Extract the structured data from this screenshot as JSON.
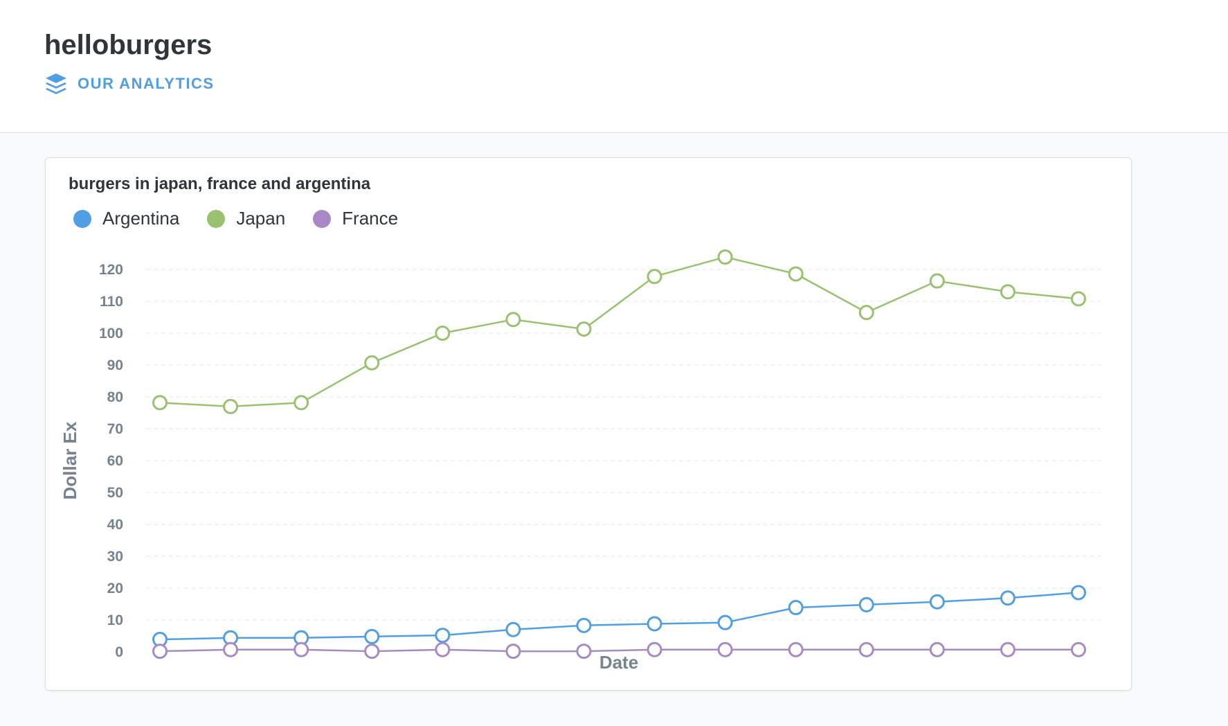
{
  "dashboard": {
    "title": "helloburgers",
    "collection_label": "OUR ANALYTICS",
    "collection_icon": "collection-stack-icon"
  },
  "card": {
    "title": "burgers in japan, france and argentina"
  },
  "colors": {
    "accent": "#509ee3",
    "argentina": "#509ee3",
    "japan": "#98c270",
    "france": "#a989c5"
  },
  "chart_data": {
    "type": "line",
    "title": "burgers in japan, france and argentina",
    "xlabel": "Date",
    "ylabel": "Dollar Ex",
    "ylim": [
      0,
      120
    ],
    "yticks": [
      0,
      10,
      20,
      30,
      40,
      50,
      60,
      70,
      80,
      90,
      100,
      110,
      120
    ],
    "grid": true,
    "legend_position": "top-left",
    "point_count": 14,
    "series": [
      {
        "name": "Argentina",
        "color": "#509ee3",
        "values": [
          3.9,
          4.4,
          4.4,
          4.8,
          5.2,
          7.0,
          8.3,
          8.8,
          9.2,
          13.9,
          14.8,
          15.7,
          16.9,
          18.6
        ]
      },
      {
        "name": "Japan",
        "color": "#98c270",
        "values": [
          78.2,
          77.0,
          78.2,
          90.7,
          100.0,
          104.3,
          101.3,
          117.8,
          123.9,
          118.6,
          106.5,
          116.4,
          113.0,
          110.8
        ]
      },
      {
        "name": "France",
        "color": "#a989c5",
        "values": [
          0.2,
          0.7,
          0.7,
          0.2,
          0.7,
          0.2,
          0.2,
          0.7,
          0.7,
          0.7,
          0.7,
          0.7,
          0.7,
          0.7
        ]
      }
    ]
  }
}
